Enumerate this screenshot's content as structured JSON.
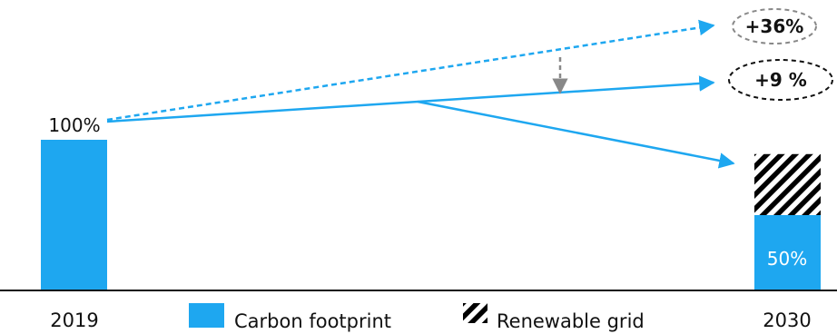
{
  "chart_data": {
    "type": "bar",
    "categories": [
      "2019",
      "2030"
    ],
    "series": [
      {
        "name": "Carbon footprint",
        "values": [
          100,
          50
        ]
      },
      {
        "name": "Renewable grid",
        "values": [
          0,
          50
        ]
      }
    ],
    "bar_labels": [
      "100%",
      "50%"
    ],
    "projections": [
      {
        "label": "+36%",
        "style": "dashed",
        "outline": "grey-dashed-ellipse"
      },
      {
        "label": "+9 %",
        "style": "solid",
        "outline": "black-dashed-ellipse"
      }
    ],
    "legend": [
      {
        "label": "Carbon footprint",
        "swatch": "solid"
      },
      {
        "label": "Renewable grid",
        "swatch": "hatched"
      }
    ],
    "ylim": [
      0,
      100
    ],
    "grid": false,
    "legend_position": "bottom-center"
  },
  "colors": {
    "accent": "#1ea7f0",
    "hatch": "#000000",
    "grey_arrow": "#888888",
    "text": "#111111"
  }
}
